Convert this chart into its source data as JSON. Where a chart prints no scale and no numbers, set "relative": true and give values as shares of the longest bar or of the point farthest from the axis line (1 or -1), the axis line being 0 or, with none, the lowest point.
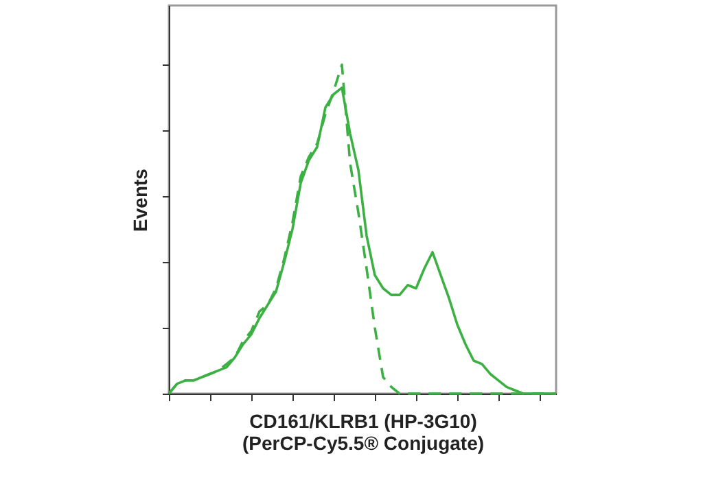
{
  "chart_data": {
    "type": "line",
    "relative": true,
    "xlabel": "CD161/KLRB1 (HP-3G10)\n(PerCP-Cy5.5® Conjugate)",
    "ylabel": "Events",
    "tick_labels": false,
    "marker": "none",
    "categories": [
      null,
      null,
      null,
      null,
      null,
      null,
      null,
      null,
      null,
      null,
      null,
      null,
      null,
      null,
      null,
      null,
      null,
      null,
      null,
      null,
      null,
      null,
      null,
      null,
      null,
      null,
      null,
      null,
      null,
      null,
      null,
      null,
      null,
      null,
      null,
      null,
      null,
      null,
      null,
      null,
      null,
      null,
      null,
      null,
      null,
      null,
      null,
      null
    ],
    "series": [
      {
        "color": "#3cb043",
        "line_style": "solid",
        "values": [
          0,
          0.03,
          0.04,
          0.04,
          0.05,
          0.06,
          0.07,
          0.08,
          0.11,
          0.15,
          0.18,
          0.23,
          0.27,
          0.31,
          0.4,
          0.5,
          0.64,
          0.71,
          0.75,
          0.87,
          0.91,
          0.93,
          0.79,
          0.68,
          0.48,
          0.36,
          0.32,
          0.3,
          0.3,
          0.33,
          0.32,
          0.38,
          0.43,
          0.36,
          0.29,
          0.21,
          0.15,
          0.1,
          0.09,
          0.06,
          0.04,
          0.02,
          0.01,
          0,
          0,
          0,
          0,
          0
        ]
      },
      {
        "color": "#3cb043",
        "line_style": "dashed",
        "values": [
          0,
          0.03,
          0.04,
          0.04,
          0.05,
          0.06,
          0.07,
          0.09,
          0.11,
          0.16,
          0.19,
          0.25,
          0.27,
          0.32,
          0.41,
          0.52,
          0.66,
          0.72,
          0.76,
          0.85,
          0.92,
          1.0,
          0.7,
          0.55,
          0.38,
          0.2,
          0.05,
          0.02,
          0,
          0,
          0,
          0,
          0,
          0,
          0,
          0,
          0,
          0,
          0,
          0,
          0,
          0,
          0,
          0,
          0,
          0,
          0,
          0
        ]
      }
    ]
  }
}
